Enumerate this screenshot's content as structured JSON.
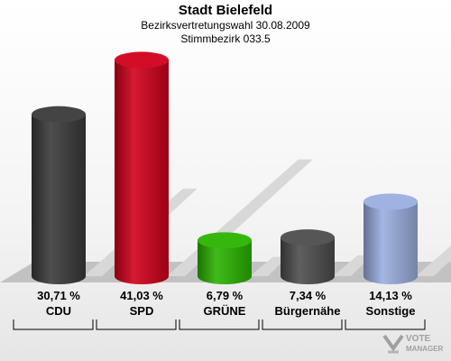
{
  "header": {
    "title": "Stadt Bielefeld",
    "subtitle_1": "Bezirksvertretungswahl 30.08.2009",
    "subtitle_2": "Stimmbezirk 033.5"
  },
  "chart_data": {
    "type": "bar",
    "title": "Stadt Bielefeld",
    "subtitle": "Bezirksvertretungswahl 30.08.2009 / Stimmbezirk 033.5",
    "categories": [
      "CDU",
      "SPD",
      "GRÜNE",
      "Bürgernähe",
      "Sonstige"
    ],
    "values": [
      30.71,
      41.03,
      6.79,
      7.34,
      14.13
    ],
    "value_labels": [
      "30,71 %",
      "41,03 %",
      "6,79 %",
      "7,34 %",
      "14,13 %"
    ],
    "colors": [
      "#3a3a3a",
      "#d0001a",
      "#2bb300",
      "#4d4d4d",
      "#9aaee0"
    ],
    "xlabel": "",
    "ylabel": "",
    "ylim": [
      0,
      45
    ],
    "grid": false,
    "legend": "none"
  },
  "watermark": {
    "line1": "VOTE",
    "line2": "MANAGER"
  }
}
